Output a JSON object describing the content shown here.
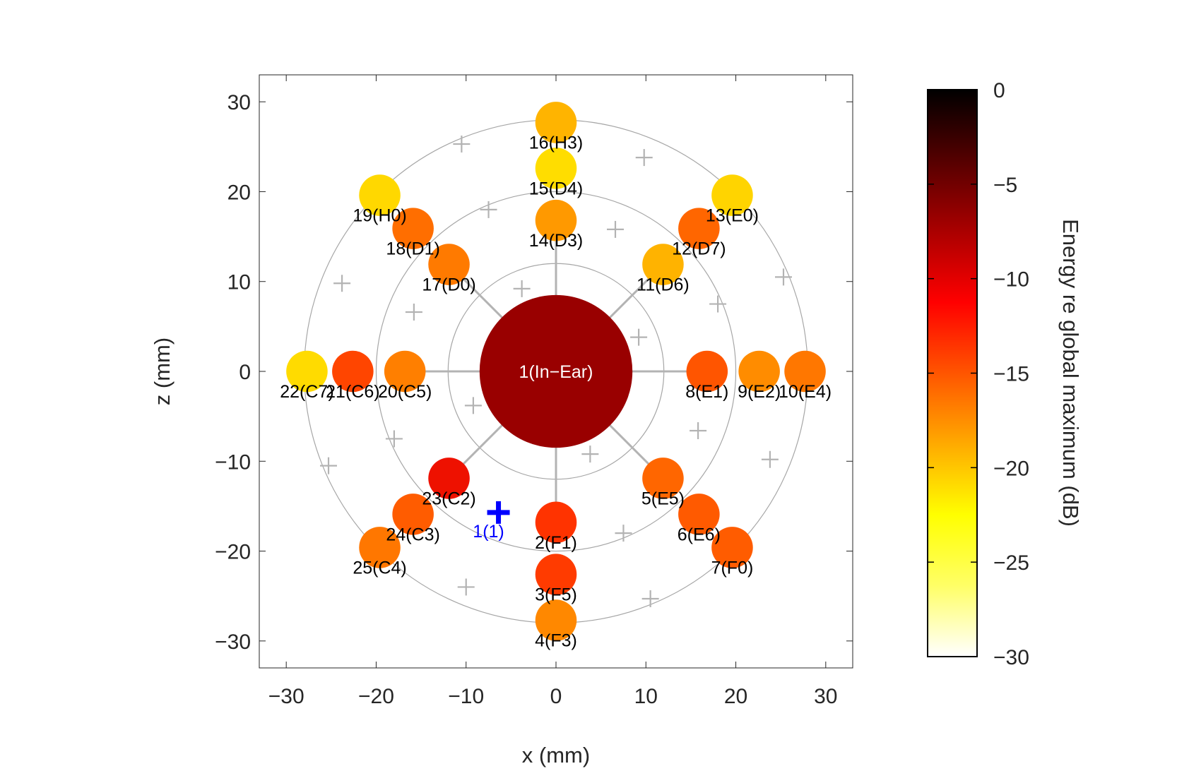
{
  "chart_data": {
    "type": "scatter",
    "xlabel": "x (mm)",
    "ylabel": "z (mm)",
    "xlim": [
      -33,
      33
    ],
    "ylim": [
      -33,
      33
    ],
    "xticks": [
      "−30",
      "−20",
      "−10",
      "0",
      "10",
      "20",
      "30"
    ],
    "xtick_values": [
      -30,
      -20,
      -10,
      0,
      10,
      20,
      30
    ],
    "yticks": [
      "30",
      "20",
      "10",
      "0",
      "−10",
      "−20",
      "−30"
    ],
    "ytick_values": [
      30,
      20,
      10,
      0,
      -10,
      -20,
      -30
    ],
    "rings_mm": [
      12,
      20,
      28
    ],
    "colorbar": {
      "label": "Energy re global maximum (dB)",
      "range": [
        -30,
        0
      ],
      "ticks": [
        "0",
        "−5",
        "−10",
        "−15",
        "−20",
        "−25",
        "−30"
      ],
      "tick_values": [
        0,
        -5,
        -10,
        -15,
        -20,
        -25,
        -30
      ],
      "colormap": [
        "#ffffff",
        "#ffff66",
        "#ffff00",
        "#ffaa00",
        "#ff5500",
        "#ff0000",
        "#aa0000",
        "#550000",
        "#000000"
      ]
    },
    "center_point": {
      "label": "1(In−Ear)",
      "x": 0,
      "z": 0,
      "db": -6.5,
      "color": "#990000"
    },
    "points": [
      {
        "label": "2(F1)",
        "x": 0,
        "z": -16.8,
        "db": -12.5,
        "color": "#ff3300"
      },
      {
        "label": "3(F5)",
        "x": 0,
        "z": -22.6,
        "db": -13.5,
        "color": "#ff3b00"
      },
      {
        "label": "4(F3)",
        "x": 0,
        "z": -27.7,
        "db": -17.5,
        "color": "#ff8800"
      },
      {
        "label": "5(E5)",
        "x": 11.9,
        "z": -11.9,
        "db": -15.5,
        "color": "#ff6600"
      },
      {
        "label": "6(E6)",
        "x": 15.9,
        "z": -15.9,
        "db": -15.0,
        "color": "#ff5a00"
      },
      {
        "label": "7(F0)",
        "x": 19.6,
        "z": -19.6,
        "db": -15.0,
        "color": "#ff5c00"
      },
      {
        "label": "8(E1)",
        "x": 16.8,
        "z": 0,
        "db": -14.5,
        "color": "#ff5500"
      },
      {
        "label": "9(E2)",
        "x": 22.6,
        "z": 0,
        "db": -18.0,
        "color": "#ff8c00"
      },
      {
        "label": "10(E4)",
        "x": 27.7,
        "z": 0,
        "db": -16.5,
        "color": "#ff7700"
      },
      {
        "label": "11(D6)",
        "x": 11.9,
        "z": 11.9,
        "db": -20.0,
        "color": "#ffb300"
      },
      {
        "label": "12(D7)",
        "x": 15.9,
        "z": 15.9,
        "db": -15.5,
        "color": "#ff6600"
      },
      {
        "label": "13(E0)",
        "x": 19.6,
        "z": 19.6,
        "db": -22.0,
        "color": "#ffd400"
      },
      {
        "label": "14(D3)",
        "x": 0,
        "z": 16.8,
        "db": -18.5,
        "color": "#ff9900"
      },
      {
        "label": "15(D4)",
        "x": 0,
        "z": 22.6,
        "db": -22.5,
        "color": "#ffdd00"
      },
      {
        "label": "16(H3)",
        "x": 0,
        "z": 27.7,
        "db": -20.0,
        "color": "#ffb400"
      },
      {
        "label": "17(D0)",
        "x": -11.9,
        "z": 11.9,
        "db": -17.0,
        "color": "#ff7a00"
      },
      {
        "label": "18(D1)",
        "x": -15.9,
        "z": 15.9,
        "db": -16.0,
        "color": "#ff6e00"
      },
      {
        "label": "19(H0)",
        "x": -19.6,
        "z": 19.6,
        "db": -22.5,
        "color": "#ffd800"
      },
      {
        "label": "20(C5)",
        "x": -16.8,
        "z": 0,
        "db": -17.0,
        "color": "#ff7f00"
      },
      {
        "label": "21(C6)",
        "x": -22.6,
        "z": 0,
        "db": -14.0,
        "color": "#ff4500"
      },
      {
        "label": "22(C7)",
        "x": -27.7,
        "z": 0,
        "db": -22.5,
        "color": "#ffdb00"
      },
      {
        "label": "23(C2)",
        "x": -11.9,
        "z": -11.9,
        "db": -11.5,
        "color": "#ee1100"
      },
      {
        "label": "24(C3)",
        "x": -15.9,
        "z": -15.9,
        "db": -15.0,
        "color": "#ff5c00"
      },
      {
        "label": "25(C4)",
        "x": -19.6,
        "z": -19.6,
        "db": -16.5,
        "color": "#ff7700"
      }
    ],
    "marker": {
      "label": "1(1)",
      "x": -6.4,
      "z": -15.7,
      "color": "#0000ff"
    },
    "grid_crosses": [
      [
        -10.5,
        25.3
      ],
      [
        -7.5,
        18
      ],
      [
        -3.8,
        9.2
      ],
      [
        6.6,
        15.8
      ],
      [
        9.2,
        3.8
      ],
      [
        18,
        7.5
      ],
      [
        25.3,
        10.5
      ],
      [
        23.8,
        -9.8
      ],
      [
        15.8,
        -6.6
      ],
      [
        3.8,
        -9.2
      ],
      [
        7.5,
        -18
      ],
      [
        10.5,
        -25.3
      ],
      [
        -10,
        -24
      ],
      [
        -9.2,
        -3.8
      ],
      [
        -18,
        -7.5
      ],
      [
        -25.3,
        -10.5
      ],
      [
        -23.8,
        9.8
      ],
      [
        -15.8,
        6.6
      ],
      [
        9.8,
        23.8
      ]
    ]
  }
}
